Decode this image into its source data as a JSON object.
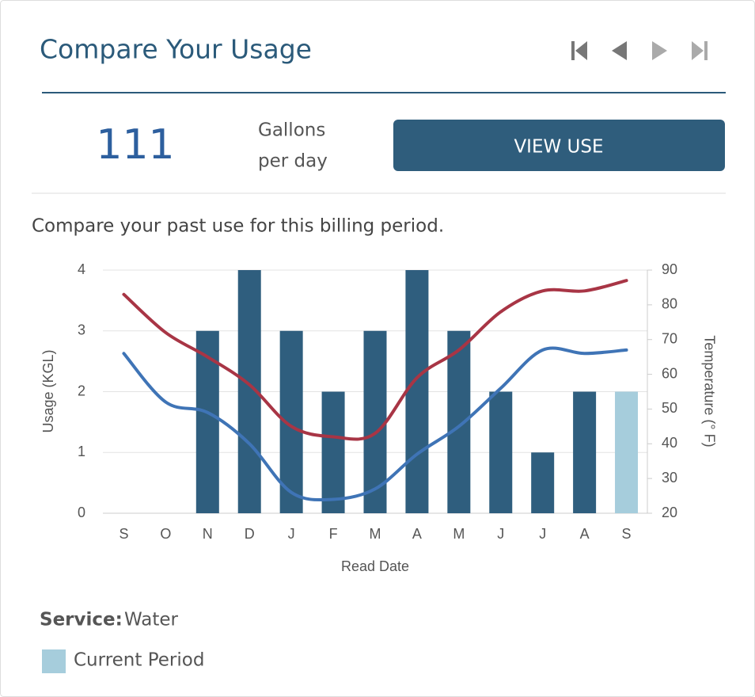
{
  "header": {
    "title": "Compare Your Usage"
  },
  "summary": {
    "value": 111,
    "unit_line1": "Gallons",
    "unit_line2": "per day",
    "button": "VIEW USE"
  },
  "description": "Compare your past use for this billing period.",
  "chart_data": {
    "type": "bar",
    "categories": [
      "S",
      "O",
      "N",
      "D",
      "J",
      "F",
      "M",
      "A",
      "M",
      "J",
      "J",
      "A",
      "S"
    ],
    "xlabel": "Read Date",
    "ylabel": "Usage (KGL)",
    "y2label": "Temperature (° F)",
    "ylim": [
      0,
      4
    ],
    "yticks": [
      0,
      1,
      2,
      3,
      4
    ],
    "y2lim": [
      20,
      90
    ],
    "y2ticks": [
      20,
      30,
      40,
      50,
      60,
      70,
      80,
      90
    ],
    "grid": true,
    "series": [
      {
        "type": "bar",
        "values": [
          0,
          0,
          3,
          4,
          3,
          2,
          3,
          4,
          3,
          2,
          1,
          2,
          2
        ],
        "colors": [
          "#2f5e7e",
          "#2f5e7e",
          "#2f5e7e",
          "#2f5e7e",
          "#2f5e7e",
          "#2f5e7e",
          "#2f5e7e",
          "#2f5e7e",
          "#2f5e7e",
          "#2f5e7e",
          "#2f5e7e",
          "#2f5e7e",
          "#a6cddc"
        ]
      },
      {
        "type": "line",
        "axis": "y2",
        "color": "#a83545",
        "values": [
          83,
          72,
          65,
          57,
          45,
          42,
          43,
          59,
          67,
          78,
          84,
          84,
          87
        ]
      },
      {
        "type": "line",
        "axis": "y2",
        "color": "#3f74b6",
        "values": [
          66,
          52,
          49,
          40,
          26,
          24,
          27,
          37,
          45,
          56,
          67,
          66,
          67
        ]
      }
    ],
    "legend": {
      "label": "Current Period",
      "color": "#a6cddc"
    }
  },
  "service": {
    "label": "Service:",
    "value": "Water"
  }
}
